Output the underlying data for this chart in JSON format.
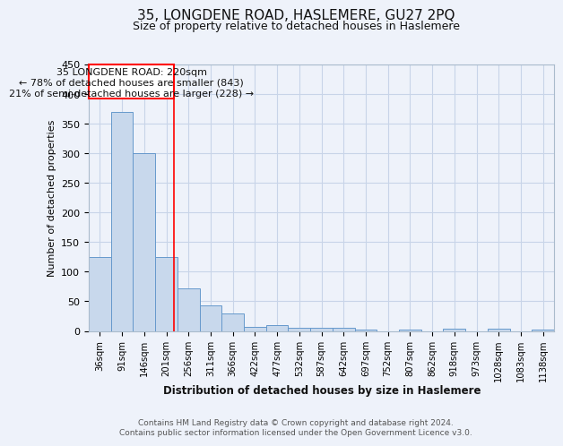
{
  "title": "35, LONGDENE ROAD, HASLEMERE, GU27 2PQ",
  "subtitle": "Size of property relative to detached houses in Haslemere",
  "xlabel": "Distribution of detached houses by size in Haslemere",
  "ylabel": "Number of detached properties",
  "footer_line1": "Contains HM Land Registry data © Crown copyright and database right 2024.",
  "footer_line2": "Contains public sector information licensed under the Open Government Licence v3.0.",
  "categories": [
    "36sqm",
    "91sqm",
    "146sqm",
    "201sqm",
    "256sqm",
    "311sqm",
    "366sqm",
    "422sqm",
    "477sqm",
    "532sqm",
    "587sqm",
    "642sqm",
    "697sqm",
    "752sqm",
    "807sqm",
    "862sqm",
    "918sqm",
    "973sqm",
    "1028sqm",
    "1083sqm",
    "1138sqm"
  ],
  "values": [
    125,
    370,
    300,
    125,
    72,
    43,
    30,
    7,
    10,
    6,
    6,
    6,
    3,
    0,
    3,
    0,
    4,
    0,
    4,
    0,
    3
  ],
  "bar_color": "#c8d8ec",
  "bar_edge_color": "#6699cc",
  "grid_color": "#c8d4e8",
  "annotation_text_line1": "35 LONGDENE ROAD: 220sqm",
  "annotation_text_line2": "← 78% of detached houses are smaller (843)",
  "annotation_text_line3": "21% of semi-detached houses are larger (228) →",
  "ylim": [
    0,
    450
  ],
  "yticks": [
    0,
    50,
    100,
    150,
    200,
    250,
    300,
    350,
    400,
    450
  ],
  "bg_color": "#eef2fa",
  "axes_bg_color": "#eef2fa"
}
